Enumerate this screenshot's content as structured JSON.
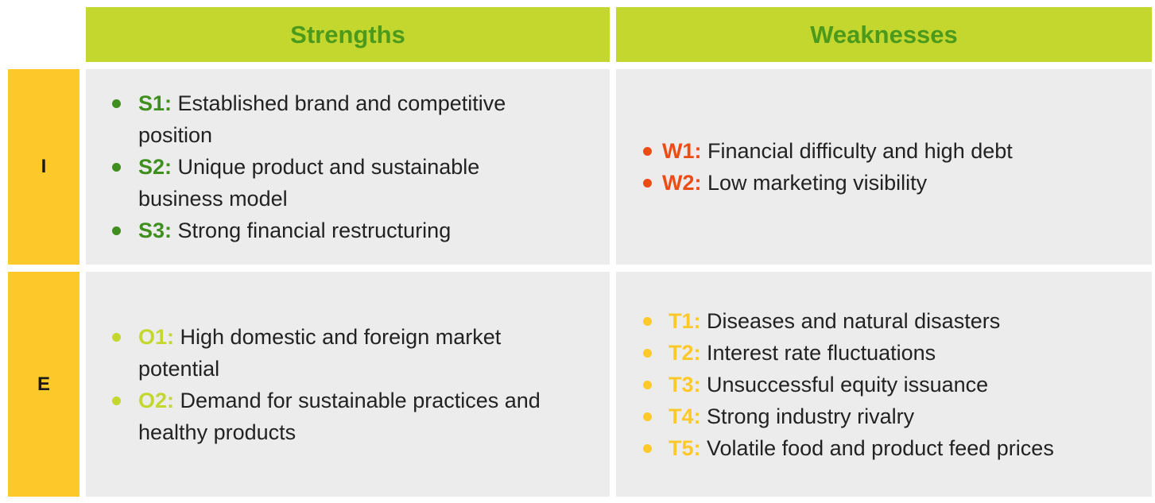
{
  "headers": {
    "strengths": "Strengths",
    "weaknesses": "Weaknesses"
  },
  "rows": {
    "internal": "I",
    "external": "E"
  },
  "strengths": [
    {
      "code": "S1:",
      "text": "Established brand and competitive position"
    },
    {
      "code": "S2:",
      "text": "Unique product and sustainable business model"
    },
    {
      "code": "S3:",
      "text": "Strong financial restructuring"
    }
  ],
  "weaknesses": [
    {
      "code": "W1:",
      "text": "Financial difficulty and high debt"
    },
    {
      "code": "W2:",
      "text": "Low marketing visibility"
    }
  ],
  "opportunities": [
    {
      "code": "O1:",
      "text": "High domestic and foreign market potential"
    },
    {
      "code": "O2:",
      "text": "Demand for sustainable practices and healthy products"
    }
  ],
  "threats": [
    {
      "code": "T1:",
      "text": "Diseases and natural disasters"
    },
    {
      "code": "T2:",
      "text": "Interest rate fluctuations"
    },
    {
      "code": "T3:",
      "text": "Unsuccessful equity issuance"
    },
    {
      "code": "T4:",
      "text": "Strong industry rivalry"
    },
    {
      "code": "T5:",
      "text": "Volatile food and product feed prices"
    }
  ],
  "colors": {
    "header_bg": "#c4d72f",
    "header_text": "#4c9a1c",
    "side_bg": "#fcc82a",
    "cell_bg": "#ececec",
    "strength": "#3f8f1f",
    "weakness": "#ec4d14",
    "opportunity": "#c4d72f",
    "threat": "#fcc82a"
  }
}
